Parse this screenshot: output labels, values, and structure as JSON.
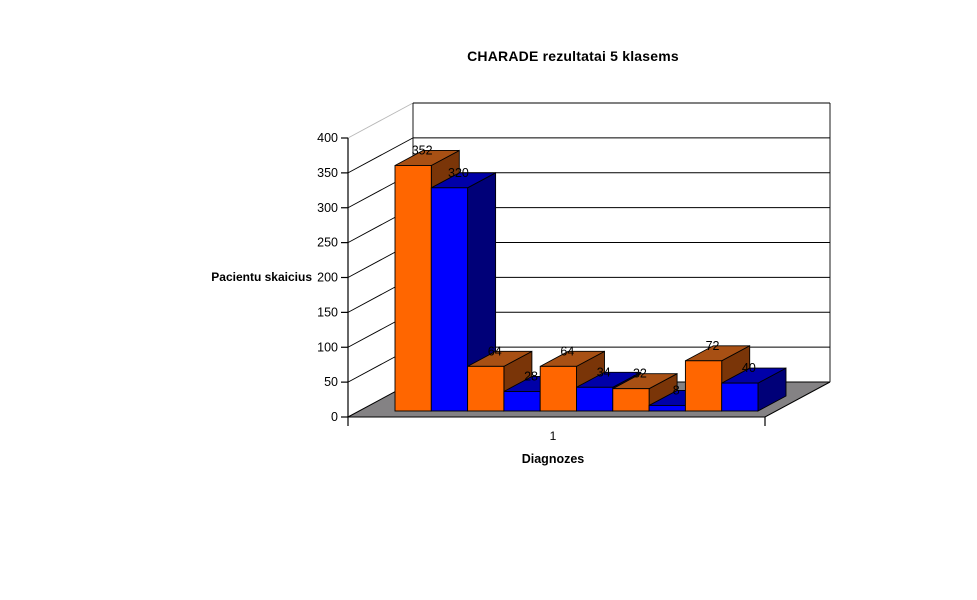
{
  "chart_data": {
    "type": "bar",
    "projection": "3d-column",
    "title": "CHARADE rezultatai 5 klasems",
    "xlabel": "Diagnozes",
    "ylabel": "Pacientu skaicius",
    "categories": [
      "1"
    ],
    "ylim": [
      0,
      400
    ],
    "yticks": [
      0,
      50,
      100,
      150,
      200,
      250,
      300,
      350,
      400
    ],
    "grid": true,
    "legend": false,
    "data_labels": true,
    "bars": [
      {
        "value": 352,
        "label": "352",
        "color": "orange"
      },
      {
        "value": 320,
        "label": "320",
        "color": "blue"
      },
      {
        "value": 64,
        "label": "64",
        "color": "orange"
      },
      {
        "value": 28,
        "label": "28",
        "color": "blue"
      },
      {
        "value": 64,
        "label": "64",
        "color": "orange"
      },
      {
        "value": 34,
        "label": "34",
        "color": "blue"
      },
      {
        "value": 32,
        "label": "32",
        "color": "orange"
      },
      {
        "value": 8,
        "label": "8",
        "color": "blue"
      },
      {
        "value": 72,
        "label": "72",
        "color": "orange"
      },
      {
        "value": 40,
        "label": "40",
        "color": "blue"
      }
    ],
    "colors": {
      "orange": {
        "front": "#FF6600",
        "top": "#A85014",
        "side": "#7A3508"
      },
      "blue": {
        "front": "#0000FF",
        "top": "#0000A8",
        "side": "#000078"
      },
      "floor": "#848284",
      "wall": "#FFFFFF",
      "gridline": "#000000",
      "corner": "#B8B8B8"
    }
  }
}
